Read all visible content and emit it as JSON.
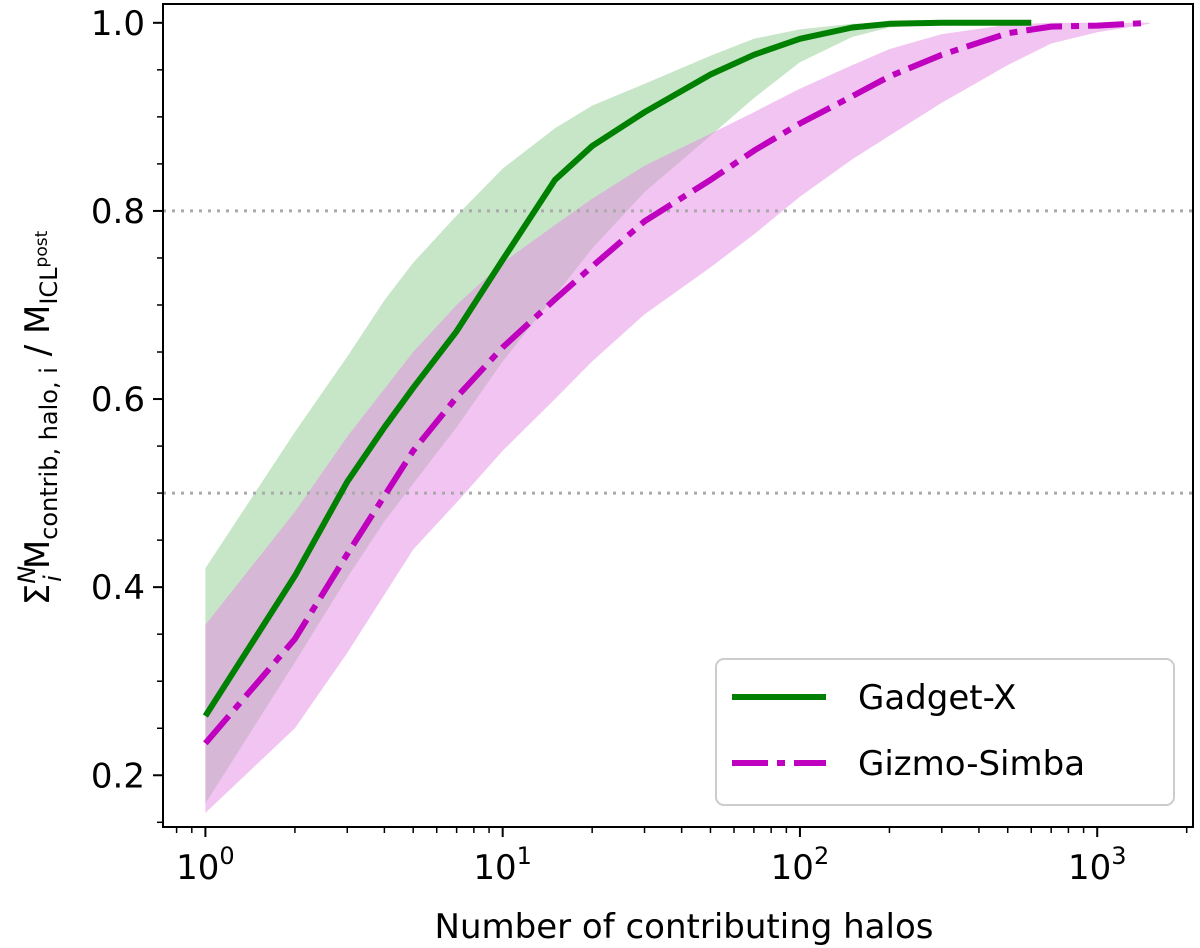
{
  "chart_data": {
    "type": "line",
    "title": "",
    "xlabel": "Number of contributing halos",
    "ylabel": {
      "sigma": "Σ",
      "sigma_sub": "i",
      "sigma_sup": "N",
      "mass1": "M",
      "mass1_sub": "contrib, halo, i",
      "slash": " / ",
      "mass2": "M",
      "mass2_sub": "ICL",
      "mass2_subsub": "post"
    },
    "xscale": "log",
    "xlim": [
      0.72,
      2100
    ],
    "ylim": [
      0.145,
      1.02
    ],
    "xticks": [
      {
        "value": 1,
        "base": "10",
        "exp": "0"
      },
      {
        "value": 10,
        "base": "10",
        "exp": "1"
      },
      {
        "value": 100,
        "base": "10",
        "exp": "2"
      },
      {
        "value": 1000,
        "base": "10",
        "exp": "3"
      }
    ],
    "yticks": [
      {
        "value": 0.2,
        "label": "0.2"
      },
      {
        "value": 0.4,
        "label": "0.4"
      },
      {
        "value": 0.6,
        "label": "0.6"
      },
      {
        "value": 0.8,
        "label": "0.8"
      },
      {
        "value": 1.0,
        "label": "1.0"
      }
    ],
    "reference_lines": [
      0.5,
      0.8
    ],
    "legend_position": "lower-right",
    "series": [
      {
        "name": "Gadget-X",
        "color": "#008000",
        "band_color": "#90cc90",
        "style": "solid",
        "x": [
          1,
          2,
          3,
          4,
          5,
          7,
          10,
          15,
          20,
          30,
          50,
          70,
          100,
          150,
          200,
          300,
          600
        ],
        "y": [
          0.263,
          0.412,
          0.512,
          0.57,
          0.612,
          0.672,
          0.748,
          0.833,
          0.869,
          0.905,
          0.945,
          0.966,
          0.983,
          0.995,
          0.999,
          1.0,
          1.0
        ],
        "lower": [
          0.17,
          0.32,
          0.41,
          0.47,
          0.51,
          0.57,
          0.64,
          0.71,
          0.76,
          0.82,
          0.88,
          0.92,
          0.958,
          0.985,
          0.995,
          0.999,
          0.999
        ],
        "upper": [
          0.42,
          0.565,
          0.645,
          0.705,
          0.745,
          0.795,
          0.845,
          0.888,
          0.912,
          0.935,
          0.965,
          0.983,
          0.993,
          0.999,
          1.0,
          1.0,
          1.0
        ]
      },
      {
        "name": "Gizmo-Simba",
        "color": "#bf00bf",
        "band_color": "#e58ae5",
        "style": "dashdot",
        "x": [
          1,
          2,
          3,
          5,
          7,
          10,
          15,
          20,
          30,
          50,
          70,
          100,
          150,
          200,
          300,
          500,
          700,
          1000,
          1500
        ],
        "y": [
          0.234,
          0.345,
          0.435,
          0.545,
          0.602,
          0.655,
          0.706,
          0.741,
          0.789,
          0.833,
          0.864,
          0.893,
          0.922,
          0.943,
          0.966,
          0.989,
          0.996,
          0.997,
          1.0
        ],
        "lower": [
          0.16,
          0.25,
          0.33,
          0.44,
          0.49,
          0.545,
          0.6,
          0.64,
          0.69,
          0.74,
          0.775,
          0.815,
          0.855,
          0.88,
          0.915,
          0.955,
          0.978,
          0.99,
          0.999
        ],
        "upper": [
          0.36,
          0.48,
          0.56,
          0.65,
          0.7,
          0.745,
          0.785,
          0.813,
          0.848,
          0.882,
          0.905,
          0.93,
          0.955,
          0.972,
          0.988,
          0.998,
          1.0,
          1.0,
          1.0
        ]
      }
    ]
  }
}
